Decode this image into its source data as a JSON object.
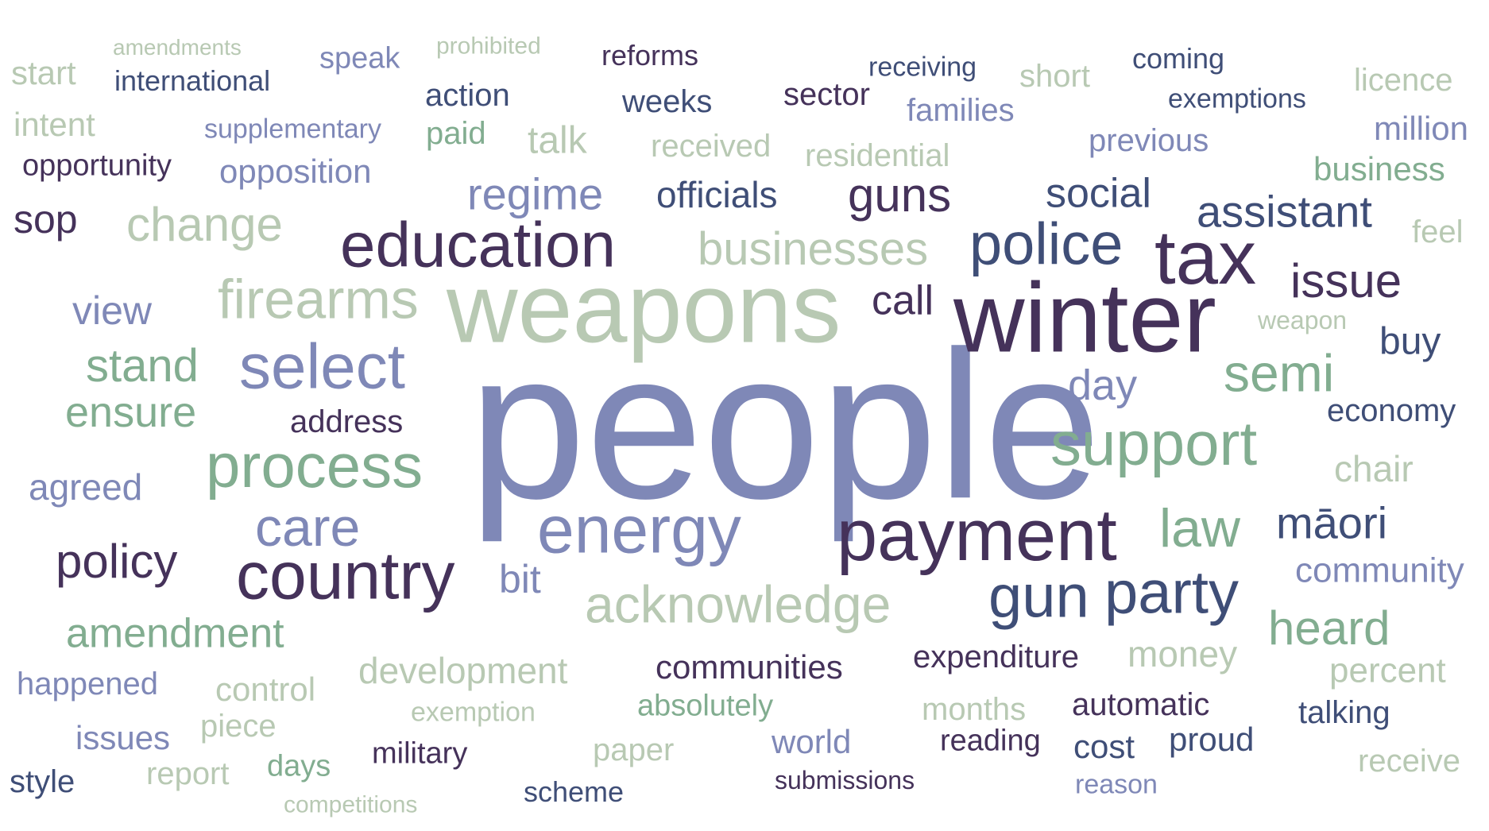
{
  "palette": {
    "sage": "#b8c9b3",
    "green": "#82ad90",
    "lavender": "#7f88b7",
    "navy": "#3f4e77",
    "plum": "#45325a"
  },
  "words": [
    {
      "text": "people",
      "color": "#7f88b7"
    },
    {
      "text": "weapons",
      "color": "#b8c9b3"
    },
    {
      "text": "winter",
      "color": "#45325a"
    },
    {
      "text": "payment",
      "color": "#45325a"
    },
    {
      "text": "education",
      "color": "#45325a"
    },
    {
      "text": "tax",
      "color": "#45325a"
    },
    {
      "text": "country",
      "color": "#45325a"
    },
    {
      "text": "support",
      "color": "#82ad90"
    },
    {
      "text": "energy",
      "color": "#7f88b7"
    },
    {
      "text": "process",
      "color": "#82ad90"
    },
    {
      "text": "select",
      "color": "#7f88b7"
    },
    {
      "text": "police",
      "color": "#3f4e77"
    },
    {
      "text": "party",
      "color": "#3f4e77"
    },
    {
      "text": "gun",
      "color": "#3f4e77"
    },
    {
      "text": "acknowledge",
      "color": "#b8c9b3"
    },
    {
      "text": "firearms",
      "color": "#b8c9b3"
    },
    {
      "text": "care",
      "color": "#7f88b7"
    },
    {
      "text": "semi",
      "color": "#82ad90"
    },
    {
      "text": "law",
      "color": "#82ad90"
    },
    {
      "text": "guns",
      "color": "#45325a"
    },
    {
      "text": "change",
      "color": "#b8c9b3"
    },
    {
      "text": "issue",
      "color": "#45325a"
    },
    {
      "text": "regime",
      "color": "#7f88b7"
    },
    {
      "text": "assistant",
      "color": "#3f4e77"
    },
    {
      "text": "businesses",
      "color": "#b8c9b3"
    },
    {
      "text": "heard",
      "color": "#82ad90"
    },
    {
      "text": "māori",
      "color": "#3f4e77"
    },
    {
      "text": "policy",
      "color": "#45325a"
    },
    {
      "text": "stand",
      "color": "#82ad90"
    },
    {
      "text": "social",
      "color": "#3f4e77"
    },
    {
      "text": "amendment",
      "color": "#82ad90"
    },
    {
      "text": "ensure",
      "color": "#82ad90"
    },
    {
      "text": "day",
      "color": "#7f88b7"
    },
    {
      "text": "officials",
      "color": "#3f4e77"
    },
    {
      "text": "call",
      "color": "#45325a"
    },
    {
      "text": "view",
      "color": "#7f88b7"
    },
    {
      "text": "development",
      "color": "#b8c9b3"
    },
    {
      "text": "money",
      "color": "#b8c9b3"
    },
    {
      "text": "communities",
      "color": "#45325a"
    },
    {
      "text": "buy",
      "color": "#3f4e77"
    },
    {
      "text": "agreed",
      "color": "#7f88b7"
    },
    {
      "text": "sop",
      "color": "#45325a"
    },
    {
      "text": "bit",
      "color": "#7f88b7"
    },
    {
      "text": "chair",
      "color": "#b8c9b3"
    },
    {
      "text": "percent",
      "color": "#b8c9b3"
    },
    {
      "text": "expenditure",
      "color": "#45325a"
    },
    {
      "text": "community",
      "color": "#7f88b7"
    },
    {
      "text": "economy",
      "color": "#3f4e77"
    },
    {
      "text": "business",
      "color": "#82ad90"
    },
    {
      "text": "million",
      "color": "#7f88b7"
    },
    {
      "text": "happened",
      "color": "#7f88b7"
    },
    {
      "text": "control",
      "color": "#b8c9b3"
    },
    {
      "text": "address",
      "color": "#45325a"
    },
    {
      "text": "talk",
      "color": "#b8c9b3"
    },
    {
      "text": "opposition",
      "color": "#7f88b7"
    },
    {
      "text": "received",
      "color": "#b8c9b3"
    },
    {
      "text": "residential",
      "color": "#b8c9b3"
    },
    {
      "text": "previous",
      "color": "#7f88b7"
    },
    {
      "text": "world",
      "color": "#7f88b7"
    },
    {
      "text": "automatic",
      "color": "#45325a"
    },
    {
      "text": "cost",
      "color": "#3f4e77"
    },
    {
      "text": "proud",
      "color": "#3f4e77"
    },
    {
      "text": "talking",
      "color": "#3f4e77"
    },
    {
      "text": "issues",
      "color": "#7f88b7"
    },
    {
      "text": "weeks",
      "color": "#3f4e77"
    },
    {
      "text": "sector",
      "color": "#45325a"
    },
    {
      "text": "action",
      "color": "#3f4e77"
    },
    {
      "text": "paid",
      "color": "#82ad90"
    },
    {
      "text": "families",
      "color": "#7f88b7"
    },
    {
      "text": "short",
      "color": "#b8c9b3"
    },
    {
      "text": "intent",
      "color": "#b8c9b3"
    },
    {
      "text": "start",
      "color": "#b8c9b3"
    },
    {
      "text": "feel",
      "color": "#b8c9b3"
    },
    {
      "text": "licence",
      "color": "#b8c9b3"
    },
    {
      "text": "months",
      "color": "#b8c9b3"
    },
    {
      "text": "reading",
      "color": "#45325a"
    },
    {
      "text": "receive",
      "color": "#b8c9b3"
    },
    {
      "text": "report",
      "color": "#b8c9b3"
    },
    {
      "text": "days",
      "color": "#82ad90"
    },
    {
      "text": "military",
      "color": "#45325a"
    },
    {
      "text": "paper",
      "color": "#b8c9b3"
    },
    {
      "text": "style",
      "color": "#3f4e77"
    },
    {
      "text": "scheme",
      "color": "#3f4e77"
    },
    {
      "text": "piece",
      "color": "#b8c9b3"
    },
    {
      "text": "absolutely",
      "color": "#82ad90"
    },
    {
      "text": "speak",
      "color": "#7f88b7"
    },
    {
      "text": "opportunity",
      "color": "#45325a"
    },
    {
      "text": "international",
      "color": "#3f4e77"
    },
    {
      "text": "supplementary",
      "color": "#7f88b7"
    },
    {
      "text": "reforms",
      "color": "#45325a"
    },
    {
      "text": "receiving",
      "color": "#3f4e77"
    },
    {
      "text": "coming",
      "color": "#3f4e77"
    },
    {
      "text": "exemptions",
      "color": "#3f4e77"
    },
    {
      "text": "weapon",
      "color": "#b8c9b3"
    },
    {
      "text": "exemption",
      "color": "#b8c9b3"
    },
    {
      "text": "reason",
      "color": "#7f88b7"
    },
    {
      "text": "submissions",
      "color": "#45325a"
    },
    {
      "text": "prohibited",
      "color": "#b8c9b3"
    },
    {
      "text": "amendments",
      "color": "#b8c9b3"
    },
    {
      "text": "competitions",
      "color": "#b8c9b3"
    }
  ]
}
